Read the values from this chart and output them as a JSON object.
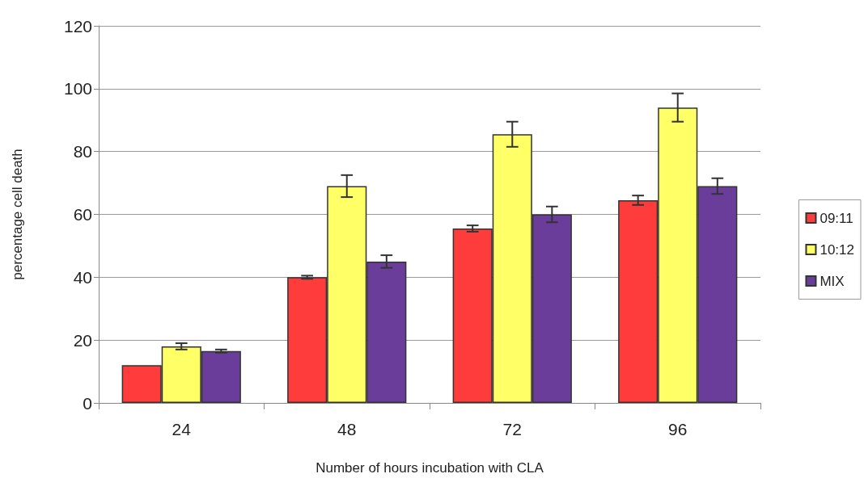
{
  "chart_data": {
    "type": "bar",
    "xlabel": "Number of hours incubation with CLA",
    "ylabel": "percentage cell death",
    "categories": [
      "24",
      "48",
      "72",
      "96"
    ],
    "series": [
      {
        "name": "09:11",
        "color": "#ff3c3c",
        "values": [
          12,
          40,
          55.5,
          64.5
        ],
        "errors": [
          null,
          0.5,
          1,
          1.5
        ]
      },
      {
        "name": "10:12",
        "color": "#ffff66",
        "values": [
          18,
          69,
          85.5,
          94
        ],
        "errors": [
          1,
          3.5,
          4,
          4.5
        ]
      },
      {
        "name": "MIX",
        "color": "#6a3d9a",
        "values": [
          16.5,
          45,
          60,
          69
        ],
        "errors": [
          0.5,
          2,
          2.5,
          2.5
        ]
      }
    ],
    "ylim": [
      0,
      120
    ],
    "yticks": [
      0,
      20,
      40,
      60,
      80,
      100,
      120
    ],
    "grid": "y",
    "legend": "right"
  }
}
